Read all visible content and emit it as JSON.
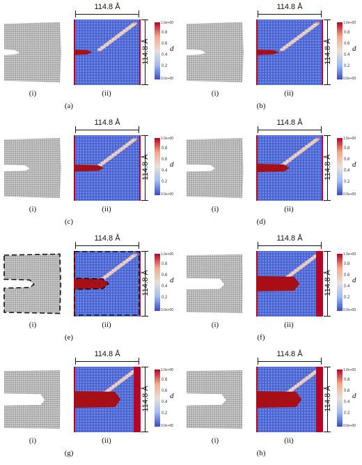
{
  "dimension_label": "114.8 Å",
  "colorbar": {
    "max_label": "1.0e+00",
    "min_label": "0.0e+00",
    "ticks": [
      "0.8",
      "0.6",
      "0.4",
      "0.2"
    ],
    "variable": "d",
    "colors": [
      "#3b4cc0",
      "#9fbdf5",
      "#e8e0da",
      "#f2a98a",
      "#b40426"
    ]
  },
  "sublabel_i": "(i)",
  "sublabel_ii": "(ii)",
  "panels": [
    {
      "label": "(a)",
      "crack": 0.28,
      "dashed": false,
      "widthen": 0.0,
      "rightband": false
    },
    {
      "label": "(b)",
      "crack": 0.34,
      "dashed": false,
      "widthen": 0.0,
      "rightband": false
    },
    {
      "label": "(c)",
      "crack": 0.45,
      "dashed": false,
      "widthen": 0.02,
      "rightband": false
    },
    {
      "label": "(d)",
      "crack": 0.5,
      "dashed": false,
      "widthen": 0.04,
      "rightband": false
    },
    {
      "label": "(e)",
      "crack": 0.52,
      "dashed": true,
      "widthen": 0.08,
      "rightband": false
    },
    {
      "label": "(f)",
      "crack": 0.65,
      "dashed": false,
      "widthen": 0.14,
      "rightband": true
    },
    {
      "label": "(g)",
      "crack": 0.7,
      "dashed": false,
      "widthen": 0.16,
      "rightband": true
    },
    {
      "label": "(h)",
      "crack": 0.68,
      "dashed": false,
      "widthen": 0.16,
      "rightband": true
    }
  ]
}
